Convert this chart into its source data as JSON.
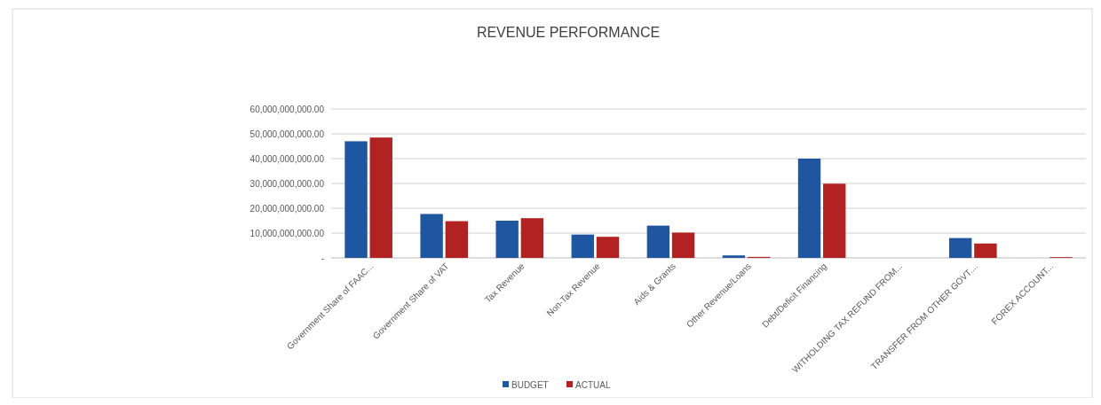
{
  "chart_data": {
    "type": "bar",
    "title": "REVENUE PERFORMANCE",
    "categories": [
      "Government Share of FAAC...",
      "Government Share of VAT",
      "Tax Revenue",
      "Non-Tax Revenue",
      "Aids & Grants",
      "Other Revenue/Loans",
      "Debt/Deficit Financing",
      "WITHOLDING TAX REFUND FROM...",
      "TRANSFER FROM OTHER GOVT....",
      "FOREX ACCOUNT..."
    ],
    "series": [
      {
        "name": "BUDGET",
        "color": "#1f56a0",
        "values": [
          47000000000,
          17700000000,
          15000000000,
          9400000000,
          13000000000,
          1000000000,
          40000000000,
          0,
          8000000000,
          0
        ]
      },
      {
        "name": "ACTUAL",
        "color": "#b22222",
        "values": [
          48500000000,
          14800000000,
          16000000000,
          8500000000,
          10200000000,
          400000000,
          29900000000,
          0,
          5800000000,
          300000000
        ]
      }
    ],
    "ylim": [
      0,
      60000000000
    ],
    "yticks": [
      {
        "value": 0,
        "label": "-"
      },
      {
        "value": 10000000000,
        "label": "10,000,000,000.00"
      },
      {
        "value": 20000000000,
        "label": "20,000,000,000.00"
      },
      {
        "value": 30000000000,
        "label": "30,000,000,000.00"
      },
      {
        "value": 40000000000,
        "label": "40,000,000,000.00"
      },
      {
        "value": 50000000000,
        "label": "50,000,000,000.00"
      },
      {
        "value": 60000000000,
        "label": "60,000,000,000.00"
      }
    ],
    "grid": "y",
    "legend": "bottom"
  }
}
